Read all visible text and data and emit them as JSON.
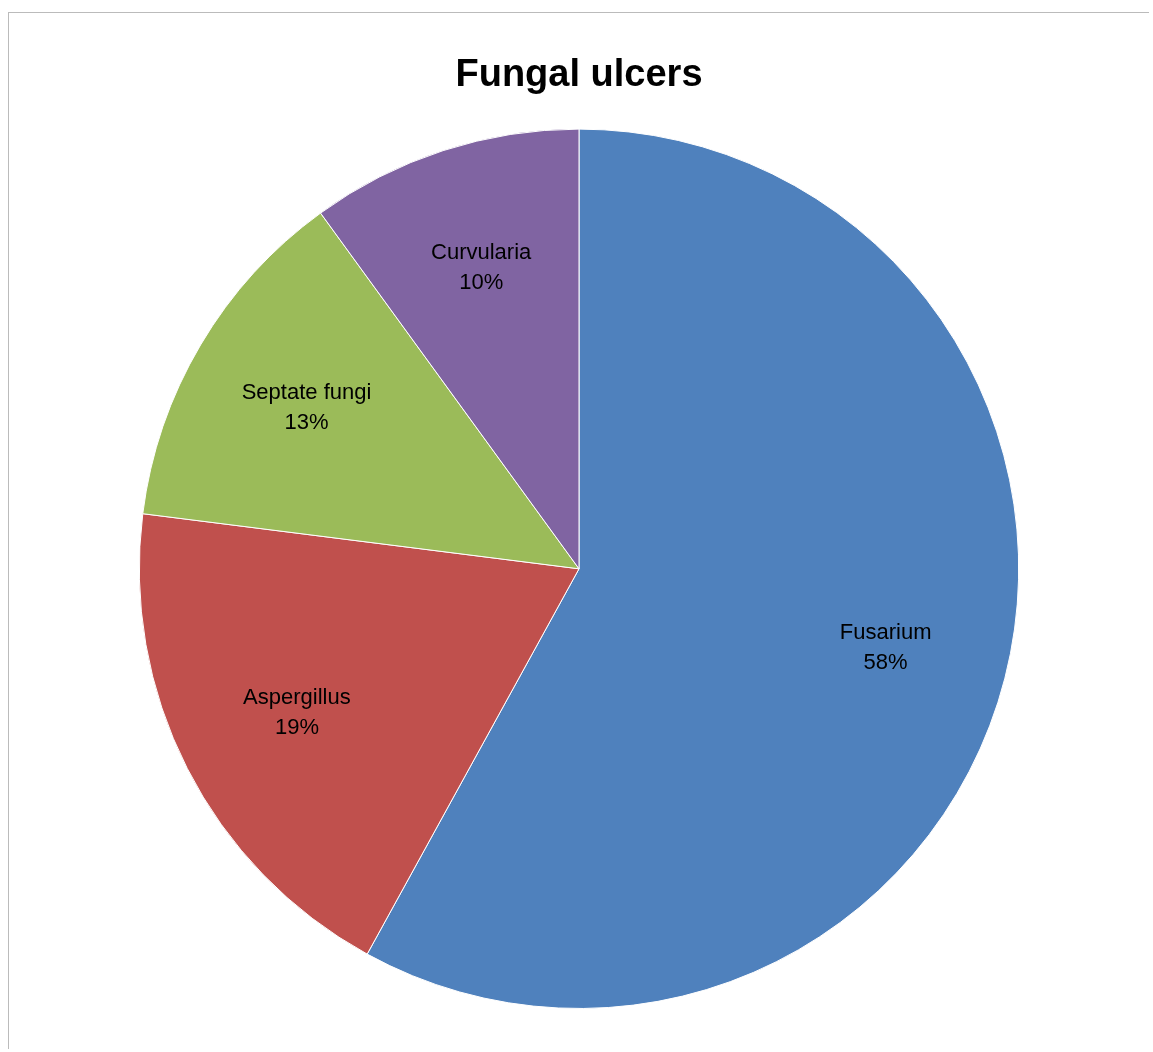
{
  "chart_data": {
    "type": "pie",
    "title": "Fungal ulcers",
    "categories": [
      "Fusarium",
      "Aspergillus",
      "Septate fungi",
      "Curvularia"
    ],
    "values": [
      58,
      19,
      13,
      10
    ],
    "colors": [
      "#4f81bd",
      "#c0504d",
      "#9bbb59",
      "#8064a2"
    ],
    "value_labels": [
      "58%",
      "19%",
      "13%",
      "10%"
    ],
    "legend": false
  }
}
